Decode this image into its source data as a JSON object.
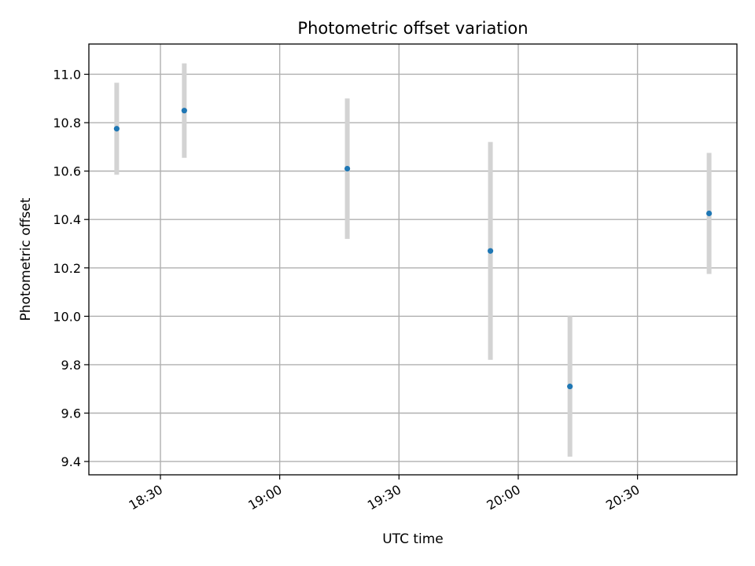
{
  "chart_data": {
    "type": "scatter",
    "title": "Photometric offset variation",
    "xlabel": "UTC time",
    "ylabel": "Photometric offset",
    "x_ticks": [
      "18:30",
      "19:00",
      "19:30",
      "20:00",
      "20:30"
    ],
    "y_ticks": [
      "9.4",
      "9.6",
      "9.8",
      "10.0",
      "10.2",
      "10.4",
      "10.6",
      "10.8",
      "11.0"
    ],
    "xlim": [
      "18:12",
      "20:55"
    ],
    "ylim": [
      9.345,
      11.125
    ],
    "grid": true,
    "marker_color": "#1f77b4",
    "errorbar_color": "#d3d3d3",
    "points": [
      {
        "time": "18:19",
        "value": 10.775,
        "error": 0.19
      },
      {
        "time": "18:36",
        "value": 10.85,
        "error": 0.195
      },
      {
        "time": "19:17",
        "value": 10.61,
        "error": 0.29
      },
      {
        "time": "19:53",
        "value": 10.27,
        "error": 0.45
      },
      {
        "time": "20:13",
        "value": 9.71,
        "error": 0.29
      },
      {
        "time": "20:48",
        "value": 10.425,
        "error": 0.25
      }
    ]
  }
}
